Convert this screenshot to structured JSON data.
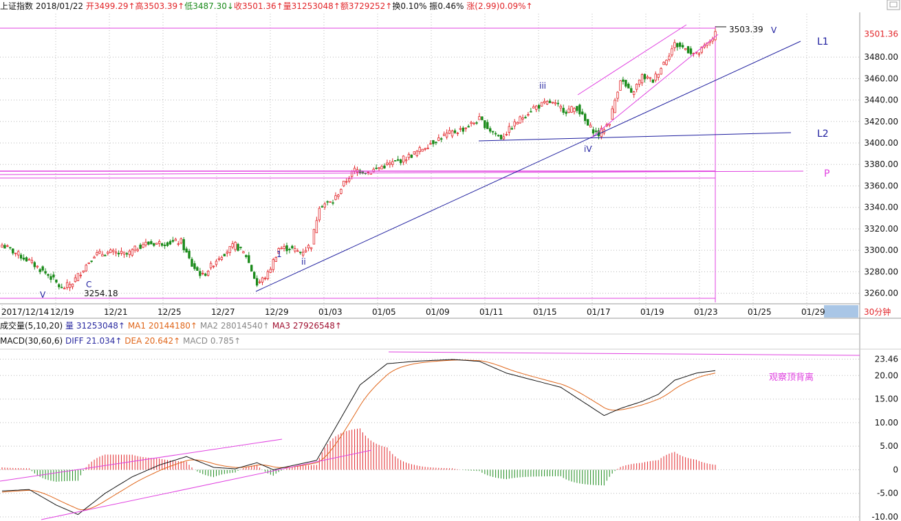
{
  "header": {
    "name": "上证指数",
    "date": "2018/01/22",
    "open_label": "开",
    "open": "3499.29↑",
    "high_label": "高",
    "high": "3503.39↑",
    "low_label": "低",
    "low": "3487.30↓",
    "close_label": "收",
    "close": "3501.36↑",
    "vol_label": "量",
    "vol": "31253048↑",
    "amt_label": "额",
    "amt": "3729252↑",
    "turn_label": "换",
    "turn": "0.10%",
    "amp_label": "振",
    "amp": "0.46%",
    "chg_label": "涨",
    "chg": "(2.99)0.09%↑"
  },
  "volume_bar": {
    "title": "成交量(5,10,20)",
    "vol_label": "量",
    "vol": "31253048↑",
    "ma1_label": "MA1",
    "ma1": "20144180↑",
    "ma2_label": "MA2",
    "ma2": "28014540↑",
    "ma3_label": "MA3",
    "ma3": "27926548↑"
  },
  "macd_bar": {
    "title": "MACD(30,60,6)",
    "diff_label": "DIFF",
    "diff": "21.034↑",
    "dea_label": "DEA",
    "dea": "20.642↑",
    "macd_label": "MACD",
    "macd": "0.785↑"
  },
  "period_button": "30分钟",
  "colors": {
    "up": "#e2262a",
    "down": "#1a8a1a",
    "navy": "#1c1c9e",
    "magenta": "#e040e0",
    "orange": "#e0661a",
    "grid": "#b8b8b8"
  },
  "chart_data": [
    {
      "type": "candlestick",
      "y_axis_ticks": [
        "3501.36",
        "3480.00",
        "3460.00",
        "3440.00",
        "3420.00",
        "3400.00",
        "3380.00",
        "3360.00",
        "3340.00",
        "3320.00",
        "3300.00",
        "3280.00",
        "3260.00"
      ],
      "ylim": [
        3254,
        3514
      ],
      "x_tick_labels": [
        "2017/12/14",
        "12/19",
        "12/21",
        "12/25",
        "12/27",
        "12/29",
        "01/03",
        "01/05",
        "01/09",
        "01/11",
        "01/15",
        "01/17",
        "01/19",
        "01/23",
        "01/25",
        "01/29"
      ],
      "annotations": {
        "high_value": "3503.39",
        "low_value": "3254.18",
        "wave_labels": [
          "V",
          "C",
          "1",
          "ii",
          "iii",
          "iV",
          "V"
        ],
        "line_labels": [
          "L1",
          "L2",
          "P"
        ]
      },
      "anchors": [
        {
          "i": 0,
          "c": 3305
        },
        {
          "i": 10,
          "c": 3290
        },
        {
          "i": 18,
          "c": 3275
        },
        {
          "i": 22,
          "c": 3264
        },
        {
          "i": 26,
          "c": 3270
        },
        {
          "i": 34,
          "c": 3296
        },
        {
          "i": 40,
          "c": 3298
        },
        {
          "i": 46,
          "c": 3296
        },
        {
          "i": 52,
          "c": 3306
        },
        {
          "i": 60,
          "c": 3307
        },
        {
          "i": 66,
          "c": 3308
        },
        {
          "i": 70,
          "c": 3286
        },
        {
          "i": 74,
          "c": 3276
        },
        {
          "i": 80,
          "c": 3294
        },
        {
          "i": 86,
          "c": 3305
        },
        {
          "i": 90,
          "c": 3295
        },
        {
          "i": 94,
          "c": 3268
        },
        {
          "i": 98,
          "c": 3278
        },
        {
          "i": 102,
          "c": 3302
        },
        {
          "i": 106,
          "c": 3302
        },
        {
          "i": 110,
          "c": 3298
        },
        {
          "i": 114,
          "c": 3305
        },
        {
          "i": 117,
          "c": 3342
        },
        {
          "i": 122,
          "c": 3345
        },
        {
          "i": 126,
          "c": 3362
        },
        {
          "i": 130,
          "c": 3375
        },
        {
          "i": 135,
          "c": 3373
        },
        {
          "i": 140,
          "c": 3378
        },
        {
          "i": 146,
          "c": 3383
        },
        {
          "i": 152,
          "c": 3390
        },
        {
          "i": 158,
          "c": 3400
        },
        {
          "i": 164,
          "c": 3408
        },
        {
          "i": 170,
          "c": 3413
        },
        {
          "i": 176,
          "c": 3422
        },
        {
          "i": 180,
          "c": 3412
        },
        {
          "i": 184,
          "c": 3405
        },
        {
          "i": 190,
          "c": 3420
        },
        {
          "i": 196,
          "c": 3433
        },
        {
          "i": 202,
          "c": 3438
        },
        {
          "i": 208,
          "c": 3430
        },
        {
          "i": 212,
          "c": 3433
        },
        {
          "i": 216,
          "c": 3416
        },
        {
          "i": 220,
          "c": 3408
        },
        {
          "i": 224,
          "c": 3420
        },
        {
          "i": 228,
          "c": 3460
        },
        {
          "i": 232,
          "c": 3445
        },
        {
          "i": 236,
          "c": 3462
        },
        {
          "i": 240,
          "c": 3458
        },
        {
          "i": 244,
          "c": 3475
        },
        {
          "i": 248,
          "c": 3492
        },
        {
          "i": 252,
          "c": 3488
        },
        {
          "i": 256,
          "c": 3482
        },
        {
          "i": 260,
          "c": 3492
        },
        {
          "i": 263,
          "c": 3501.36
        }
      ]
    },
    {
      "type": "line",
      "name": "MACD",
      "y_axis_ticks": [
        "23.46",
        "20.00",
        "15.00",
        "10.00",
        "5.00",
        "0",
        "-5.00",
        "-10.00"
      ],
      "ylim": [
        -10,
        25
      ],
      "series": [
        {
          "name": "DIFF",
          "color": "#111111"
        },
        {
          "name": "DEA",
          "color": "#e0661a"
        },
        {
          "name": "MACD",
          "color": "#e2262a"
        }
      ],
      "anchors": [
        {
          "i": 0,
          "d": -4.5
        },
        {
          "i": 10,
          "d": -4.2
        },
        {
          "i": 20,
          "d": -7.5
        },
        {
          "i": 28,
          "d": -9.5
        },
        {
          "i": 38,
          "d": -5.0
        },
        {
          "i": 48,
          "d": -1.5
        },
        {
          "i": 58,
          "d": 1.0
        },
        {
          "i": 68,
          "d": 2.8
        },
        {
          "i": 78,
          "d": 0.5
        },
        {
          "i": 86,
          "d": 0.2
        },
        {
          "i": 94,
          "d": 1.5
        },
        {
          "i": 100,
          "d": 0.0
        },
        {
          "i": 108,
          "d": 1.0
        },
        {
          "i": 116,
          "d": 2.0
        },
        {
          "i": 124,
          "d": 10.0
        },
        {
          "i": 132,
          "d": 18.0
        },
        {
          "i": 142,
          "d": 22.5
        },
        {
          "i": 152,
          "d": 23.0
        },
        {
          "i": 166,
          "d": 23.4
        },
        {
          "i": 176,
          "d": 23.0
        },
        {
          "i": 186,
          "d": 20.5
        },
        {
          "i": 196,
          "d": 19.0
        },
        {
          "i": 206,
          "d": 17.5
        },
        {
          "i": 214,
          "d": 14.5
        },
        {
          "i": 222,
          "d": 11.5
        },
        {
          "i": 228,
          "d": 13.0
        },
        {
          "i": 236,
          "d": 14.5
        },
        {
          "i": 242,
          "d": 16.0
        },
        {
          "i": 248,
          "d": 19.0
        },
        {
          "i": 256,
          "d": 20.5
        },
        {
          "i": 263,
          "d": 21.03
        }
      ],
      "annotation": "观察顶背离"
    }
  ]
}
